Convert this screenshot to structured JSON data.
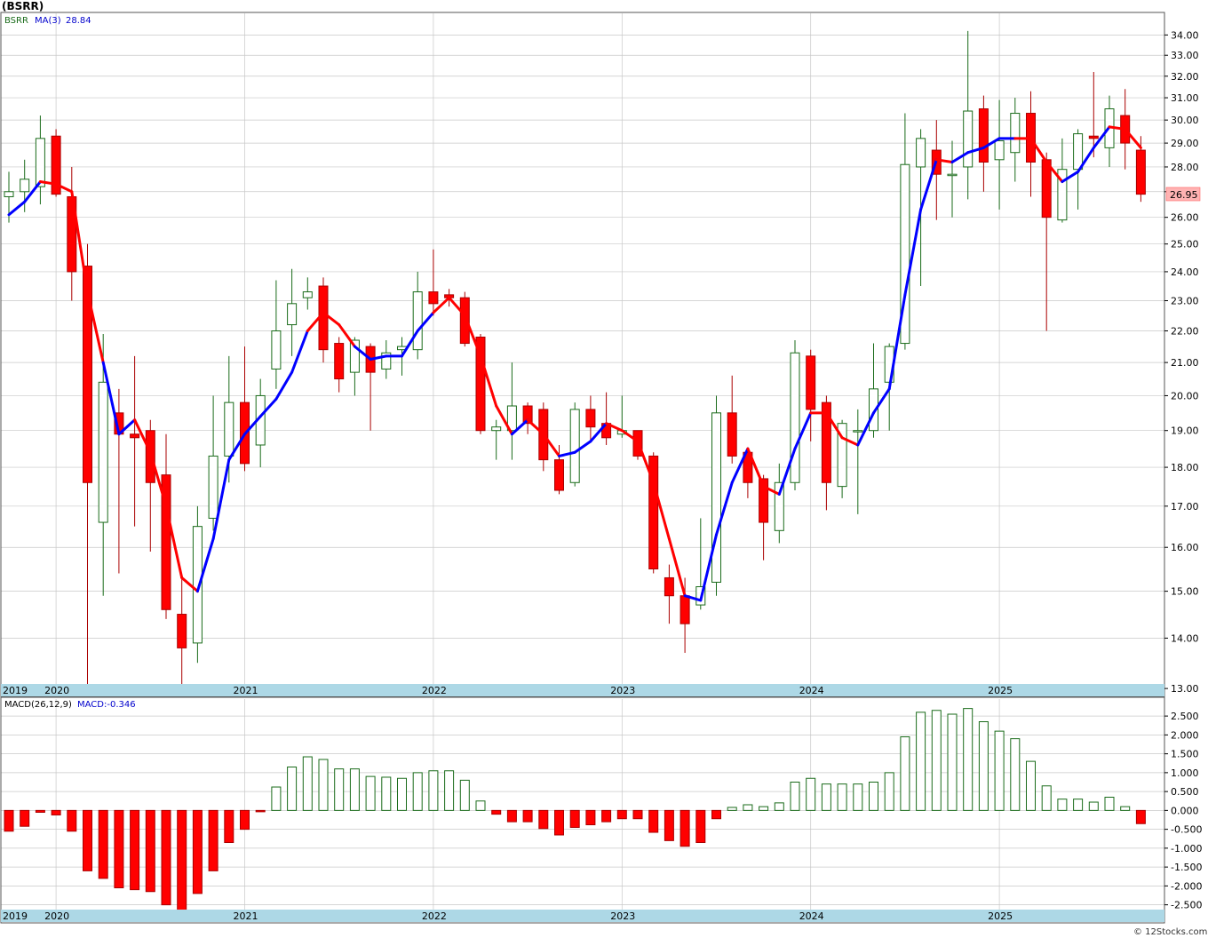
{
  "title": "(BSRR)",
  "watermark": "© 12Stocks.com",
  "colors": {
    "up": "#1a6b1a",
    "down": "#ff0000",
    "ma_up": "#0000ff",
    "ma_down": "#ff0000",
    "grid": "#c8c8c8",
    "axis_band": "#add8e6",
    "price_label_bg": "#ffb3b3"
  },
  "chart_data": [
    {
      "type": "candlestick",
      "legend": {
        "symbol": "BSRR",
        "ma_label": "MA(3)",
        "ma_value": "28.84"
      },
      "last_price_label": "26.95",
      "yscale": "log",
      "ylim": [
        12.85,
        35.1
      ],
      "yticks": [
        "34.00",
        "33.00",
        "32.00",
        "31.00",
        "30.00",
        "29.00",
        "28.00",
        "27.00",
        "26.00",
        "25.00",
        "24.00",
        "23.00",
        "22.00",
        "21.00",
        "20.00",
        "19.00",
        "18.00",
        "17.00",
        "16.00",
        "15.00",
        "14.00",
        "13.00"
      ],
      "x_labels": [
        {
          "label": "2019",
          "index": -0.5
        },
        {
          "label": "2020",
          "index": 3
        },
        {
          "label": "2021",
          "index": 15
        },
        {
          "label": "2022",
          "index": 27
        },
        {
          "label": "2023",
          "index": 39
        },
        {
          "label": "2024",
          "index": 51
        },
        {
          "label": "2025",
          "index": 63
        }
      ],
      "candles": [
        [
          26.8,
          27.0,
          27.8,
          25.8
        ],
        [
          27.0,
          27.5,
          28.3,
          26.2
        ],
        [
          27.2,
          29.2,
          30.2,
          26.5
        ],
        [
          29.3,
          26.9,
          29.6,
          26.8
        ],
        [
          26.8,
          24.0,
          28.0,
          23.0
        ],
        [
          24.2,
          17.6,
          25.0,
          13.0
        ],
        [
          16.6,
          20.4,
          21.9,
          14.9
        ],
        [
          19.5,
          18.9,
          20.2,
          15.4
        ],
        [
          18.9,
          18.8,
          21.2,
          16.5
        ],
        [
          19.0,
          17.6,
          19.3,
          15.9
        ],
        [
          17.8,
          14.6,
          18.9,
          14.4
        ],
        [
          14.5,
          13.8,
          15.3,
          12.9
        ],
        [
          13.9,
          16.5,
          17.0,
          13.5
        ],
        [
          16.7,
          18.3,
          20.0,
          16.4
        ],
        [
          18.3,
          19.8,
          21.2,
          17.6
        ],
        [
          19.8,
          18.1,
          21.5,
          17.9
        ],
        [
          18.6,
          20.0,
          20.5,
          18.0
        ],
        [
          20.8,
          22.0,
          23.7,
          20.2
        ],
        [
          22.2,
          22.9,
          24.1,
          21.2
        ],
        [
          23.1,
          23.3,
          23.8,
          22.7
        ],
        [
          23.5,
          21.4,
          23.8,
          21.0
        ],
        [
          21.6,
          20.5,
          21.8,
          20.1
        ],
        [
          20.7,
          21.7,
          21.8,
          20.0
        ],
        [
          21.5,
          20.7,
          21.6,
          19.0
        ],
        [
          20.8,
          21.3,
          21.7,
          20.5
        ],
        [
          21.4,
          21.5,
          21.8,
          20.6
        ],
        [
          21.4,
          23.3,
          24.0,
          21.1
        ],
        [
          23.3,
          22.9,
          24.8,
          22.5
        ],
        [
          23.2,
          23.1,
          23.4,
          22.8
        ],
        [
          23.1,
          21.6,
          23.3,
          21.5
        ],
        [
          21.8,
          19.0,
          21.9,
          18.9
        ],
        [
          19.0,
          19.1,
          19.3,
          18.2
        ],
        [
          19.0,
          19.7,
          21.0,
          18.2
        ],
        [
          19.7,
          19.2,
          19.8,
          18.9
        ],
        [
          19.6,
          18.2,
          19.8,
          17.9
        ],
        [
          18.2,
          17.4,
          18.6,
          17.3
        ],
        [
          17.6,
          19.6,
          19.8,
          17.5
        ],
        [
          19.6,
          19.1,
          20.0,
          18.7
        ],
        [
          19.2,
          18.8,
          20.1,
          18.6
        ],
        [
          18.9,
          19.0,
          20.0,
          18.8
        ],
        [
          19.0,
          18.3,
          19.0,
          18.2
        ],
        [
          18.3,
          15.5,
          18.4,
          15.4
        ],
        [
          15.3,
          14.9,
          15.6,
          14.3
        ],
        [
          14.9,
          14.3,
          15.3,
          13.7
        ],
        [
          14.7,
          15.1,
          16.7,
          14.6
        ],
        [
          15.2,
          19.5,
          20.0,
          14.9
        ],
        [
          19.5,
          18.3,
          20.6,
          18.1
        ],
        [
          18.4,
          17.6,
          18.5,
          17.2
        ],
        [
          17.7,
          16.6,
          17.8,
          15.7
        ],
        [
          16.4,
          17.6,
          18.1,
          16.1
        ],
        [
          17.6,
          21.3,
          21.7,
          17.4
        ],
        [
          21.2,
          19.6,
          21.4,
          18.7
        ],
        [
          19.8,
          17.6,
          20.0,
          16.9
        ],
        [
          17.5,
          19.2,
          19.3,
          17.2
        ],
        [
          19.0,
          19.0,
          19.6,
          16.8
        ],
        [
          19.0,
          20.2,
          21.6,
          18.8
        ],
        [
          20.4,
          21.5,
          21.6,
          19.0
        ],
        [
          21.6,
          28.1,
          30.3,
          21.4
        ],
        [
          28.0,
          29.2,
          29.6,
          23.5
        ],
        [
          28.7,
          27.7,
          30.0,
          25.9
        ],
        [
          27.7,
          27.7,
          29.1,
          26.0
        ],
        [
          28.0,
          30.4,
          34.2,
          26.7
        ],
        [
          30.5,
          28.2,
          31.1,
          27.0
        ],
        [
          28.3,
          29.1,
          30.9,
          26.3
        ],
        [
          28.6,
          30.3,
          31.0,
          27.4
        ],
        [
          30.3,
          28.2,
          31.3,
          26.8
        ],
        [
          28.3,
          26.0,
          28.6,
          22.0
        ],
        [
          25.9,
          27.9,
          29.2,
          25.8
        ],
        [
          27.9,
          29.4,
          29.6,
          26.3
        ],
        [
          29.3,
          29.2,
          32.2,
          28.4
        ],
        [
          28.8,
          30.5,
          31.1,
          28.0
        ],
        [
          30.2,
          29.0,
          31.4,
          27.9
        ],
        [
          28.7,
          26.9,
          29.3,
          26.6
        ]
      ],
      "ma3": [
        26.1,
        26.6,
        27.4,
        27.3,
        27.0,
        23.3,
        21.0,
        18.9,
        19.3,
        18.4,
        17.0,
        15.3,
        15.0,
        16.2,
        18.2,
        18.9,
        19.4,
        19.9,
        20.7,
        22.0,
        22.6,
        22.2,
        21.5,
        21.1,
        21.2,
        21.2,
        22.0,
        22.6,
        23.1,
        22.5,
        21.2,
        19.7,
        18.9,
        19.3,
        18.9,
        18.3,
        18.4,
        18.7,
        19.2,
        19.0,
        18.7,
        17.6,
        16.2,
        14.9,
        14.8,
        16.3,
        17.6,
        18.5,
        17.5,
        17.3,
        18.5,
        19.5,
        19.5,
        18.8,
        18.6,
        19.5,
        20.2,
        23.2,
        26.3,
        28.3,
        28.2,
        28.6,
        28.8,
        29.2,
        29.2,
        29.2,
        28.2,
        27.4,
        27.8,
        28.8,
        29.7,
        29.6,
        28.8
      ],
      "ma_up": [
        1,
        1,
        1,
        0,
        0,
        0,
        0,
        1,
        1,
        0,
        0,
        0,
        0,
        1,
        1,
        1,
        1,
        1,
        1,
        1,
        0,
        0,
        0,
        1,
        1,
        1,
        1,
        1,
        0,
        0,
        0,
        0,
        0,
        1,
        0,
        0,
        1,
        1,
        1,
        0,
        0,
        0,
        0,
        0,
        1,
        1,
        1,
        1,
        0,
        0,
        1,
        1,
        0,
        0,
        0,
        1,
        1,
        1,
        1,
        1,
        0,
        1,
        1,
        1,
        1,
        0,
        0,
        0,
        1,
        1,
        1,
        0,
        0
      ]
    },
    {
      "type": "bar",
      "legend": {
        "indicator": "MACD(26,12,9)",
        "value_label": "MACD:-0.346"
      },
      "ylim": [
        -2.65,
        2.95
      ],
      "yticks": [
        "2.500",
        "2.000",
        "1.500",
        "1.000",
        "0.500",
        "0.000",
        "-0.500",
        "-1.000",
        "-1.500",
        "-2.000",
        "-2.500"
      ],
      "x_labels": [
        {
          "label": "2019",
          "index": -0.5
        },
        {
          "label": "2020",
          "index": 3
        },
        {
          "label": "2021",
          "index": 15
        },
        {
          "label": "2022",
          "index": 27
        },
        {
          "label": "2023",
          "index": 39
        },
        {
          "label": "2024",
          "index": 51
        },
        {
          "label": "2025",
          "index": 63
        }
      ],
      "values": [
        -0.55,
        -0.42,
        -0.05,
        -0.12,
        -0.55,
        -1.6,
        -1.8,
        -2.05,
        -2.1,
        -2.15,
        -2.5,
        -2.65,
        -2.2,
        -1.6,
        -0.85,
        -0.5,
        -0.02,
        0.62,
        1.15,
        1.42,
        1.35,
        1.1,
        1.1,
        0.9,
        0.88,
        0.85,
        1.0,
        1.05,
        1.05,
        0.8,
        0.25,
        -0.1,
        -0.3,
        -0.3,
        -0.48,
        -0.65,
        -0.45,
        -0.38,
        -0.3,
        -0.22,
        -0.22,
        -0.58,
        -0.8,
        -0.95,
        -0.85,
        -0.22,
        0.08,
        0.15,
        0.1,
        0.2,
        0.75,
        0.85,
        0.7,
        0.7,
        0.7,
        0.75,
        1.0,
        1.95,
        2.6,
        2.65,
        2.55,
        2.7,
        2.35,
        2.1,
        1.9,
        1.3,
        0.65,
        0.3,
        0.3,
        0.22,
        0.35,
        0.1,
        -0.35
      ]
    }
  ]
}
